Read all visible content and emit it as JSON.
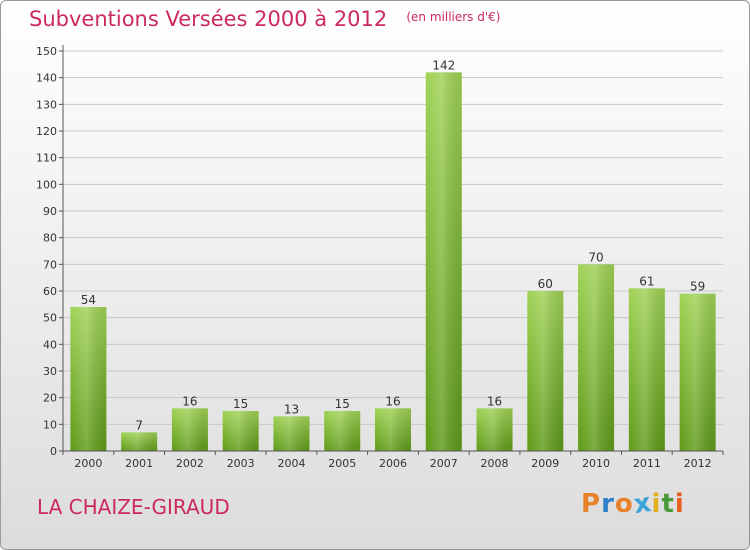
{
  "title": "Subventions Versées 2000 à 2012",
  "unit": "(en milliers d'€)",
  "commune": "LA CHAIZE-GIRAUD",
  "logo": {
    "letters": [
      "P",
      "r",
      "o",
      "x",
      "i",
      "t",
      "i"
    ],
    "colors": [
      "#e8822a",
      "#2f7fc8",
      "#e8822a",
      "#3aa4d8",
      "#e0b020",
      "#4a9a3a",
      "#e86020"
    ]
  },
  "colors": {
    "bar_top": "#9fd255",
    "bar_bottom": "#5e9a18",
    "title": "#cc2a5a",
    "grid": "#c8c8c8"
  },
  "chart_data": {
    "type": "bar",
    "title": "Subventions Versées 2000 à 2012",
    "categories": [
      "2000",
      "2001",
      "2002",
      "2003",
      "2004",
      "2005",
      "2006",
      "2007",
      "2008",
      "2009",
      "2010",
      "2011",
      "2012"
    ],
    "values": [
      54,
      7,
      16,
      15,
      13,
      15,
      16,
      142,
      16,
      60,
      70,
      61,
      59
    ],
    "ylim": [
      0,
      150
    ],
    "yticks": [
      0,
      10,
      20,
      30,
      40,
      50,
      60,
      70,
      80,
      90,
      100,
      110,
      120,
      130,
      140,
      150
    ],
    "grid": true
  }
}
